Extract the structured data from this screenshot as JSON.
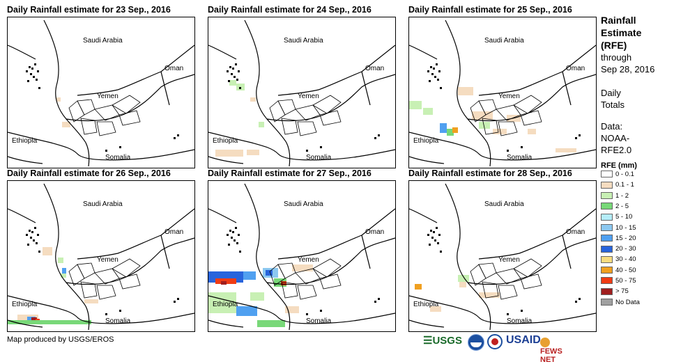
{
  "panels": [
    {
      "title": "Daily Rainfall estimate for 23 Sep., 2016"
    },
    {
      "title": "Daily Rainfall estimate for 24 Sep., 2016"
    },
    {
      "title": "Daily Rainfall estimate for 25 Sep., 2016"
    },
    {
      "title": "Daily Rainfall estimate for 26 Sep., 2016"
    },
    {
      "title": "Daily Rainfall estimate for 27 Sep., 2016"
    },
    {
      "title": "Daily Rainfall estimate for 28 Sep., 2016"
    }
  ],
  "countries": {
    "saudi": "Saudi Arabia",
    "oman": "Oman",
    "yemen": "Yemen",
    "ethiopia": "Ethiopia",
    "somalia": "Somalia"
  },
  "sidebar": {
    "title_lines": [
      "Rainfall",
      "Estimate",
      "(RFE)"
    ],
    "through": "through",
    "date": "Sep 28, 2016",
    "daily": "Daily",
    "totals": "Totals",
    "data_label": "Data:",
    "data_source_1": "NOAA-",
    "data_source_2": "RFE2.0"
  },
  "legend": {
    "title": "RFE (mm)",
    "items": [
      {
        "label": "0 - 0.1",
        "color": "#ffffff"
      },
      {
        "label": "0.1 - 1",
        "color": "#f5dcc0"
      },
      {
        "label": "1 - 2",
        "color": "#c8f0b4"
      },
      {
        "label": "2 - 5",
        "color": "#78d878"
      },
      {
        "label": "5 - 10",
        "color": "#b4ecf8"
      },
      {
        "label": "10 - 15",
        "color": "#8cc8f0"
      },
      {
        "label": "15 - 20",
        "color": "#50a0f0"
      },
      {
        "label": "20 - 30",
        "color": "#2864dc"
      },
      {
        "label": "30 - 40",
        "color": "#f8dc80"
      },
      {
        "label": "40 - 50",
        "color": "#f0a020"
      },
      {
        "label": "50 - 75",
        "color": "#f03c14"
      },
      {
        "label": "> 75",
        "color": "#a01e1e"
      },
      {
        "label": "No Data",
        "color": "#a0a0a0"
      }
    ]
  },
  "footer": {
    "credit": "Map produced by USGS/EROS",
    "logos": [
      "USGS",
      "NOAA",
      "USAID",
      "FEWS NET"
    ]
  }
}
